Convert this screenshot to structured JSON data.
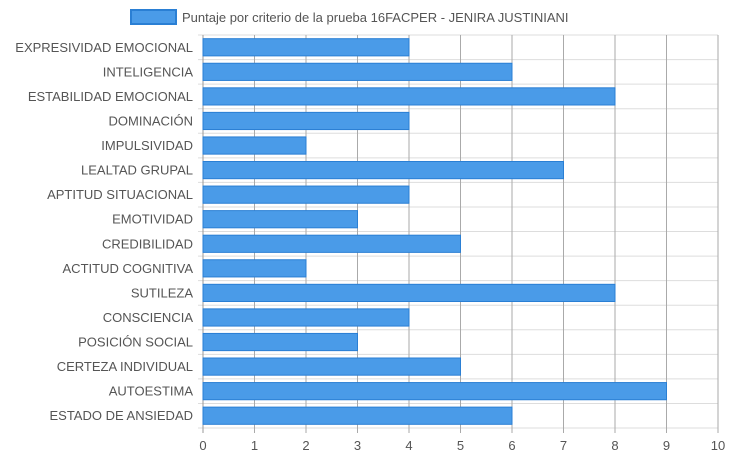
{
  "chart_data": {
    "type": "bar",
    "orientation": "horizontal",
    "categories": [
      "EXPRESIVIDAD EMOCIONAL",
      "INTELIGENCIA",
      "ESTABILIDAD EMOCIONAL",
      "DOMINACIÓN",
      "IMPULSIVIDAD",
      "LEALTAD GRUPAL",
      "APTITUD SITUACIONAL",
      "EMOTIVIDAD",
      "CREDIBILIDAD",
      "ACTITUD COGNITIVA",
      "SUTILEZA",
      "CONSCIENCIA",
      "POSICIÓN SOCIAL",
      "CERTEZA INDIVIDUAL",
      "AUTOESTIMA",
      "ESTADO DE ANSIEDAD"
    ],
    "series": [
      {
        "name": "Puntaje por criterio de la prueba 16FACPER - JENIRA JUSTINIANI",
        "values": [
          4,
          6,
          8,
          4,
          2,
          7,
          4,
          3,
          5,
          2,
          8,
          4,
          3,
          5,
          9,
          6
        ]
      }
    ],
    "xlim": [
      0,
      10
    ],
    "x_ticks": [
      "0",
      "1",
      "2",
      "3",
      "4",
      "5",
      "6",
      "7",
      "8",
      "9",
      "10"
    ],
    "grid": true,
    "legend_position": "top",
    "colors": {
      "bar_fill": "#4a9be8",
      "bar_stroke": "#2a7fd4",
      "grid": "#dddddd",
      "axis": "#999999",
      "text": "#555555"
    }
  }
}
